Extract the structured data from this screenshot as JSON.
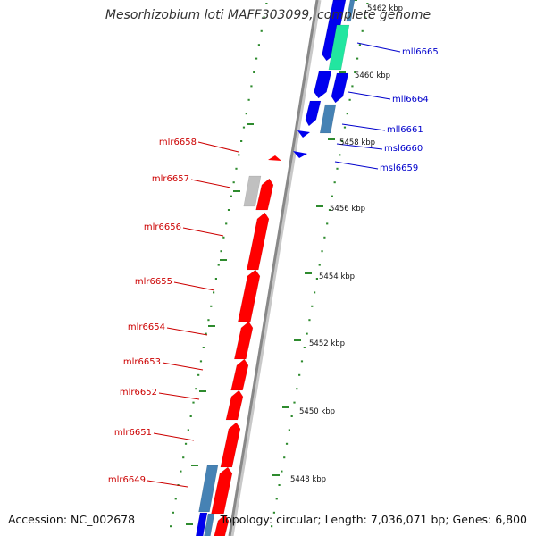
{
  "title": "Mesorhizobium loti MAFF303099, complete genome",
  "accession": "Accession: NC_002678",
  "summary": "Topology: circular; Length: 7,036,071 bp; Genes: 6,800",
  "colors": {
    "forward_gene": "#ff0000",
    "reverse_gene": "#0000ee",
    "forward_label": "#cc0000",
    "reverse_label": "#0000cc",
    "rna_steel": "#4682b4",
    "rna_green": "#22e6a0",
    "pseudo_grey": "#c0c0c0",
    "backbone": "#888888",
    "tick_dots": "#2e8b2e"
  },
  "ticks": [
    "5462 kbp",
    "5460 kbp",
    "5458 kbp",
    "5456 kbp",
    "5454 kbp",
    "5452 kbp",
    "5450 kbp",
    "5448 kbp"
  ],
  "reverse_labels": [
    "mll6665",
    "mll6664",
    "mll6661",
    "msl6660",
    "msl6659"
  ],
  "forward_labels": [
    "mlr6658",
    "mlr6657",
    "mlr6656",
    "mlr6655",
    "mlr6654",
    "mlr6653",
    "mlr6652",
    "mlr6651",
    "mlr6649"
  ]
}
